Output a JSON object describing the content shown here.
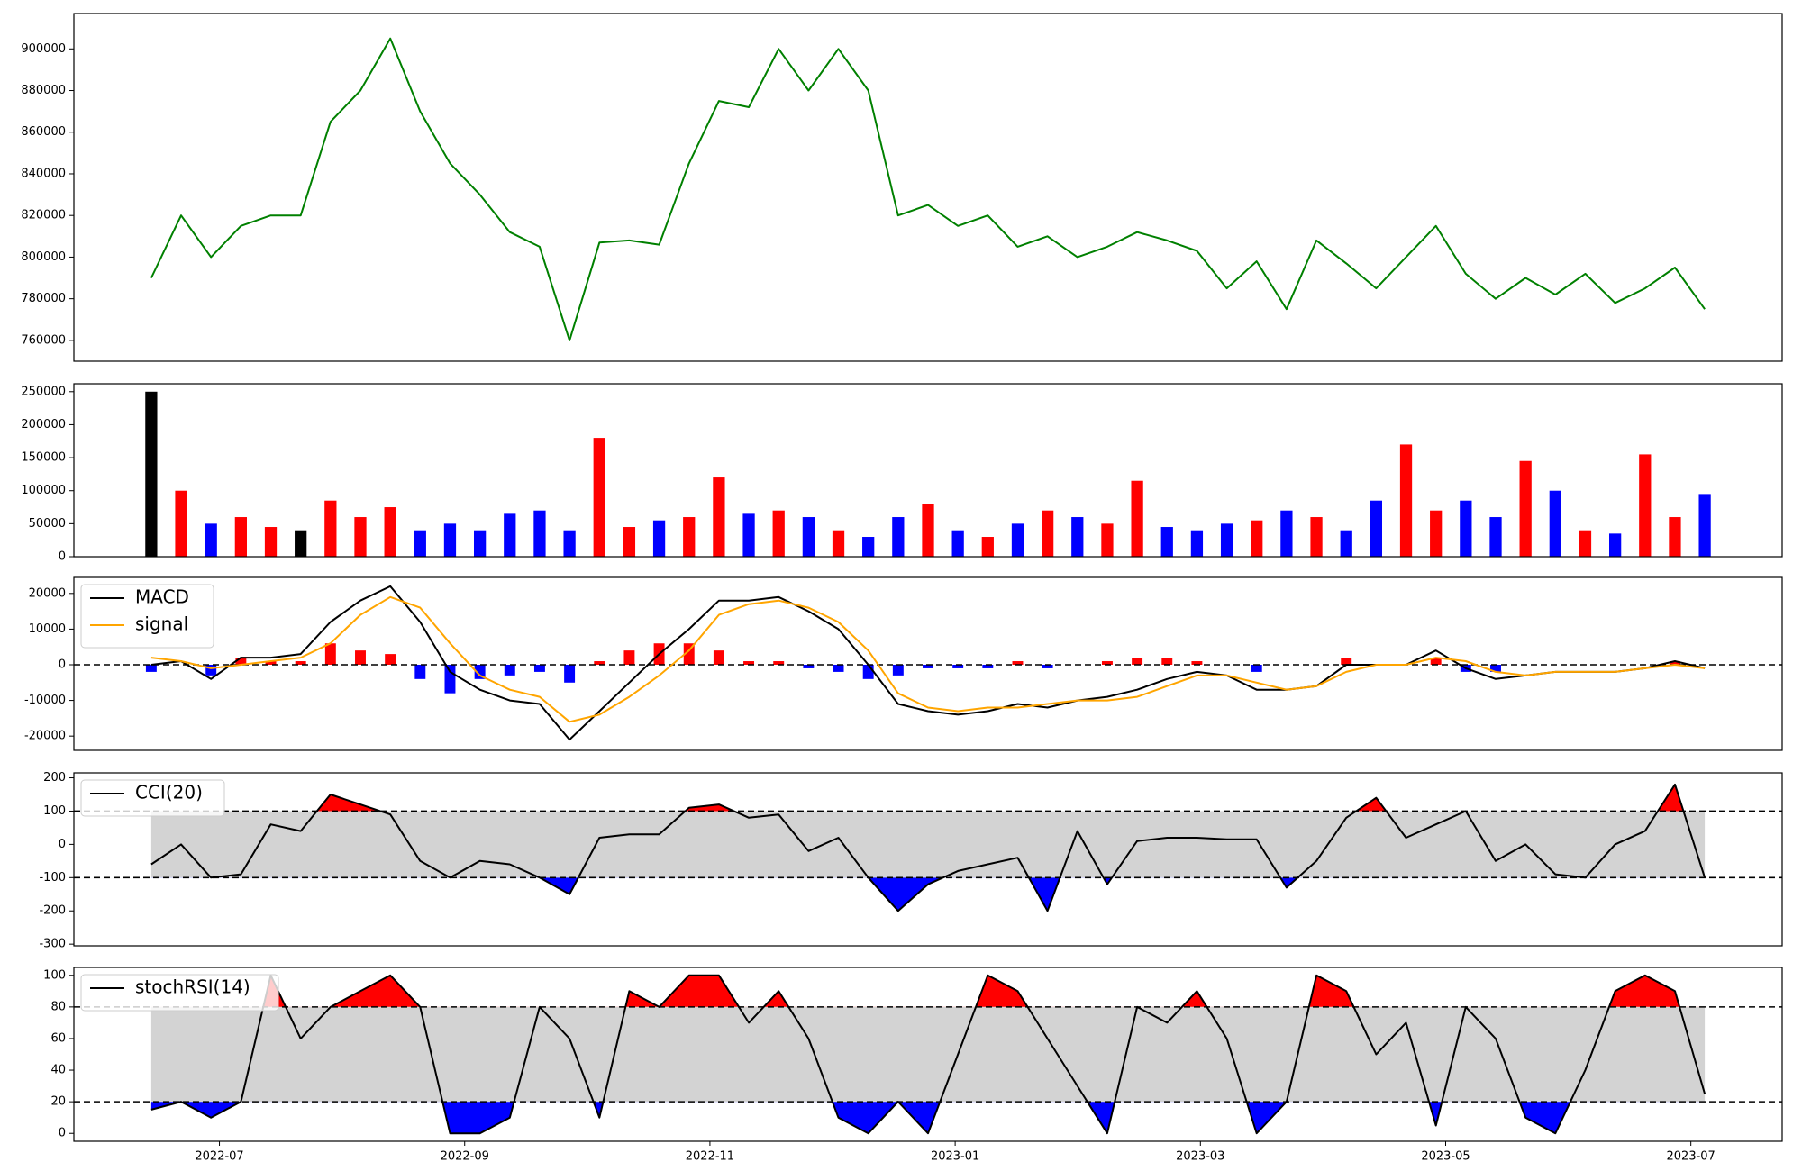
{
  "chart_data": {
    "xticks": [
      "2022-07",
      "2022-09",
      "2022-11",
      "2023-01",
      "2023-03",
      "2023-05",
      "2023-07"
    ],
    "panels": [
      {
        "type": "line",
        "series": [
          {
            "color": "green",
            "values": [
              790000,
              820000,
              800000,
              815000,
              820000,
              820000,
              865000,
              880000,
              905000,
              870000,
              845000,
              830000,
              812000,
              805000,
              760000,
              807000,
              808000,
              806000,
              845000,
              875000,
              872000,
              900000,
              880000,
              900000,
              880000,
              820000,
              825000,
              815000,
              820000,
              805000,
              810000,
              800000,
              805000,
              812000,
              808000,
              803000,
              785000,
              798000,
              775000,
              808000,
              797000,
              785000,
              800000,
              815000,
              792000,
              780000,
              790000,
              782000,
              792000,
              778000,
              785000,
              795000,
              775000
            ]
          }
        ],
        "ylim": [
          750000,
          917000
        ],
        "yticks": [
          760000,
          780000,
          800000,
          820000,
          840000,
          860000,
          880000,
          900000
        ]
      },
      {
        "type": "volume",
        "values": [
          250000,
          100000,
          50000,
          60000,
          45000,
          40000,
          85000,
          60000,
          75000,
          40000,
          50000,
          40000,
          65000,
          70000,
          40000,
          180000,
          45000,
          55000,
          60000,
          120000,
          65000,
          70000,
          60000,
          40000,
          30000,
          60000,
          80000,
          40000,
          30000,
          50000,
          70000,
          60000,
          50000,
          115000,
          45000,
          40000,
          50000,
          55000,
          70000,
          60000,
          40000,
          85000,
          170000,
          70000,
          85000,
          60000,
          145000,
          100000,
          40000,
          35000,
          155000,
          60000,
          95000
        ],
        "up_color": "red",
        "down_color": "blue",
        "flat_color": "black",
        "ylim": [
          0,
          262000
        ],
        "yticks": [
          0,
          50000,
          100000,
          150000,
          200000,
          250000
        ]
      },
      {
        "type": "macd",
        "series": [
          {
            "name": "MACD",
            "color": "black",
            "values": [
              0,
              1000,
              -4000,
              2000,
              2000,
              3000,
              12000,
              18000,
              22000,
              12000,
              -2000,
              -7000,
              -10000,
              -11000,
              -21000,
              -13000,
              -5000,
              3000,
              10000,
              18000,
              18000,
              19000,
              15000,
              10000,
              0,
              -11000,
              -13000,
              -14000,
              -13000,
              -11000,
              -12000,
              -10000,
              -9000,
              -7000,
              -4000,
              -2000,
              -3000,
              -7000,
              -7000,
              -6000,
              0,
              0,
              0,
              4000,
              -1000,
              -4000,
              -3000,
              -2000,
              -2000,
              -2000,
              -1000,
              1000,
              -1000
            ]
          },
          {
            "name": "signal",
            "color": "orange",
            "values": [
              2000,
              1000,
              -1000,
              0,
              1000,
              2000,
              6000,
              14000,
              19000,
              16000,
              6000,
              -3000,
              -7000,
              -9000,
              -16000,
              -14000,
              -9000,
              -3000,
              4000,
              14000,
              17000,
              18000,
              16000,
              12000,
              4000,
              -8000,
              -12000,
              -13000,
              -12000,
              -12000,
              -11000,
              -10000,
              -10000,
              -9000,
              -6000,
              -3000,
              -3000,
              -5000,
              -7000,
              -6000,
              -2000,
              0,
              0,
              2000,
              1000,
              -2000,
              -3000,
              -2000,
              -2000,
              -2000,
              -1000,
              0,
              -1000
            ]
          }
        ],
        "histogram": {
          "up_color": "red",
          "down_color": "blue",
          "values": [
            -2000,
            0,
            -3000,
            2000,
            1000,
            1000,
            6000,
            4000,
            3000,
            -4000,
            -8000,
            -4000,
            -3000,
            -2000,
            -5000,
            1000,
            4000,
            6000,
            6000,
            4000,
            1000,
            1000,
            -1000,
            -2000,
            -4000,
            -3000,
            -1000,
            -1000,
            -1000,
            1000,
            -1000,
            0,
            1000,
            2000,
            2000,
            1000,
            0,
            -2000,
            0,
            0,
            2000,
            0,
            0,
            2000,
            -2000,
            -2000,
            0,
            0,
            0,
            0,
            0,
            1000,
            0
          ]
        },
        "reference_lines": [
          0
        ],
        "legend": "upper left",
        "ylim": [
          -24000,
          24500
        ],
        "yticks": [
          -20000,
          -10000,
          0,
          10000,
          20000
        ]
      },
      {
        "type": "band",
        "series": [
          {
            "name": "CCI(20)",
            "color": "black",
            "values": [
              -60,
              0,
              -100,
              -90,
              60,
              40,
              150,
              120,
              90,
              -50,
              -100,
              -50,
              -60,
              -100,
              -150,
              20,
              30,
              30,
              110,
              120,
              80,
              90,
              -20,
              20,
              -100,
              -200,
              -120,
              -80,
              -60,
              -40,
              -200,
              40,
              -120,
              10,
              20,
              20,
              15,
              15,
              -130,
              -50,
              80,
              140,
              20,
              60,
              100,
              -50,
              0,
              -90,
              -100,
              0,
              40,
              180,
              -100
            ]
          }
        ],
        "upper": 100,
        "lower": -100,
        "band_color": "lightgray",
        "upper_color": "red",
        "lower_color": "blue",
        "legend": "upper left",
        "ylim": [
          -305,
          215
        ],
        "yticks": [
          -300,
          -200,
          -100,
          0,
          100,
          200
        ]
      },
      {
        "type": "band",
        "series": [
          {
            "name": "stochRSI(14)",
            "color": "black",
            "values": [
              15,
              20,
              10,
              20,
              100,
              60,
              80,
              90,
              100,
              80,
              0,
              0,
              10,
              80,
              60,
              10,
              90,
              80,
              100,
              100,
              70,
              90,
              60,
              10,
              0,
              20,
              0,
              50,
              100,
              90,
              60,
              30,
              0,
              80,
              70,
              90,
              60,
              0,
              20,
              100,
              90,
              50,
              70,
              5,
              80,
              60,
              10,
              0,
              40,
              90,
              100,
              90,
              25
            ]
          }
        ],
        "upper": 80,
        "lower": 20,
        "band_color": "lightgray",
        "upper_color": "red",
        "lower_color": "blue",
        "legend": "upper left",
        "ylim": [
          -5,
          105
        ],
        "yticks": [
          0,
          20,
          40,
          60,
          80,
          100
        ]
      }
    ]
  }
}
